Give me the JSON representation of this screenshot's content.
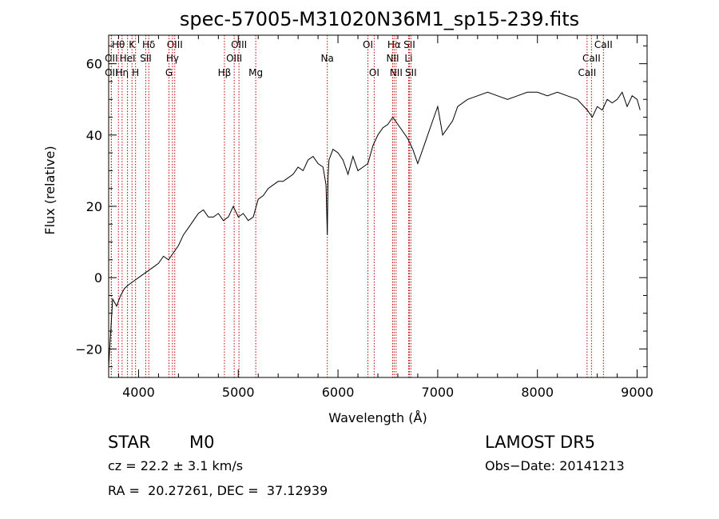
{
  "chart_data": {
    "type": "line",
    "title": "spec-57005-M31020N36M1_sp15-239.fits",
    "xlabel": "Wavelength (Å)",
    "ylabel": "Flux (relative)",
    "xlim": [
      3700,
      9100
    ],
    "ylim": [
      -28,
      68
    ],
    "xticks": [
      4000,
      5000,
      6000,
      7000,
      8000,
      9000
    ],
    "yticks": [
      -20,
      0,
      20,
      40,
      60
    ],
    "xtick_labels": [
      "4000",
      "5000",
      "6000",
      "7000",
      "8000",
      "9000"
    ],
    "ytick_labels": [
      "−20",
      "0",
      "20",
      "40",
      "60"
    ],
    "grid": false,
    "series": [
      {
        "x": [
          3700,
          3740,
          3780,
          3820,
          3860,
          3900,
          3950,
          4000,
          4050,
          4100,
          4150,
          4200,
          4250,
          4300,
          4350,
          4400,
          4450,
          4500,
          4550,
          4600,
          4650,
          4700,
          4750,
          4800,
          4850,
          4900,
          4950,
          5000,
          5050,
          5100,
          5150,
          5200,
          5250,
          5300,
          5350,
          5400,
          5450,
          5500,
          5550,
          5600,
          5650,
          5700,
          5750,
          5800,
          5850,
          5880,
          5893,
          5900,
          5910,
          5950,
          6000,
          6050,
          6100,
          6150,
          6200,
          6250,
          6300,
          6350,
          6400,
          6450,
          6500,
          6550,
          6600,
          6650,
          6700,
          6750,
          6800,
          6850,
          6900,
          6950,
          7000,
          7050,
          7100,
          7150,
          7200,
          7300,
          7400,
          7500,
          7600,
          7700,
          7800,
          7900,
          8000,
          8100,
          8200,
          8300,
          8400,
          8500,
          8550,
          8600,
          8650,
          8700,
          8750,
          8800,
          8850,
          8900,
          8950,
          9000,
          9030
        ],
        "y": [
          -25,
          -6,
          -8,
          -5,
          -3,
          -2,
          -1,
          0,
          1,
          2,
          3,
          4,
          6,
          5,
          7,
          9,
          12,
          14,
          16,
          18,
          19,
          17,
          17,
          18,
          16,
          17,
          20,
          17,
          18,
          16,
          17,
          22,
          23,
          25,
          26,
          27,
          27,
          28,
          29,
          31,
          30,
          33,
          34,
          32,
          31,
          26,
          12,
          28,
          33,
          36,
          35,
          33,
          29,
          34,
          30,
          31,
          32,
          37,
          40,
          42,
          43,
          45,
          43,
          41,
          39,
          36,
          32,
          36,
          40,
          44,
          48,
          40,
          42,
          44,
          48,
          50,
          51,
          52,
          51,
          50,
          51,
          52,
          52,
          51,
          52,
          51,
          50,
          47,
          45,
          48,
          47,
          50,
          49,
          50,
          52,
          48,
          51,
          50,
          47
        ]
      }
    ],
    "lines": [
      {
        "label": "Hθ",
        "x": 3798,
        "row": 0,
        "color": "#c00000"
      },
      {
        "label": "K",
        "x": 3934,
        "row": 0,
        "color": "#c00000"
      },
      {
        "label": "Hδ",
        "x": 4102,
        "row": 0,
        "color": "#c00000"
      },
      {
        "label": "OIII",
        "x": 4363,
        "row": 0,
        "color": "#c00000"
      },
      {
        "label": "OIII",
        "x": 5007,
        "row": 0,
        "color": "#c00000"
      },
      {
        "label": "OI",
        "x": 6300,
        "row": 0,
        "color": "#c00000"
      },
      {
        "label": "Hα",
        "x": 6563,
        "row": 0,
        "color": "#c00000"
      },
      {
        "label": "SII",
        "x": 6716,
        "row": 0,
        "color": "#c00000"
      },
      {
        "label": "CaII",
        "x": 8662,
        "row": 0,
        "color": "#c00000"
      },
      {
        "label": "OII",
        "x": 3727,
        "row": 1,
        "color": "#c00000"
      },
      {
        "label": "HeI",
        "x": 3889,
        "row": 1,
        "color": "#c00000"
      },
      {
        "label": "SII",
        "x": 4072,
        "row": 1,
        "color": "#c00000"
      },
      {
        "label": "Hγ",
        "x": 4340,
        "row": 1,
        "color": "#c00000"
      },
      {
        "label": "OIII",
        "x": 4959,
        "row": 1,
        "color": "#c00000"
      },
      {
        "label": "NII",
        "x": 6548,
        "row": 1,
        "color": "#c00000"
      },
      {
        "label": "Li",
        "x": 6708,
        "row": 1,
        "color": "#c00000"
      },
      {
        "label": "CaII",
        "x": 8542,
        "row": 1,
        "color": "#c00000"
      },
      {
        "label": "OII",
        "x": 3727,
        "row": 2,
        "color": "#c00000"
      },
      {
        "label": "Hη",
        "x": 3835,
        "row": 2,
        "color": "#c00000"
      },
      {
        "label": "H",
        "x": 3970,
        "row": 2,
        "color": "#c00000"
      },
      {
        "label": "G",
        "x": 4305,
        "row": 2,
        "color": "#c00000"
      },
      {
        "label": "Hβ",
        "x": 4861,
        "row": 2,
        "color": "#c00000"
      },
      {
        "label": "Mg",
        "x": 5175,
        "row": 2,
        "color": "#c00000"
      },
      {
        "label": "Na",
        "x": 5893,
        "row": 1,
        "color": "#c00000"
      },
      {
        "label": "OI",
        "x": 6363,
        "row": 2,
        "color": "#c00000"
      },
      {
        "label": "NII",
        "x": 6583,
        "row": 2,
        "color": "#c00000"
      },
      {
        "label": "SII",
        "x": 6731,
        "row": 2,
        "color": "#c00000"
      },
      {
        "label": "CaII",
        "x": 8498,
        "row": 2,
        "color": "#c00000"
      }
    ]
  },
  "info": {
    "class_label": "STAR",
    "subclass_label": "M0",
    "survey": "LAMOST DR5",
    "redshift": "cz = 22.2 ± 3.1 km/s",
    "obs_date": "Obs−Date: 20141213",
    "coords": "RA =  20.27261, DEC =  37.12939"
  }
}
